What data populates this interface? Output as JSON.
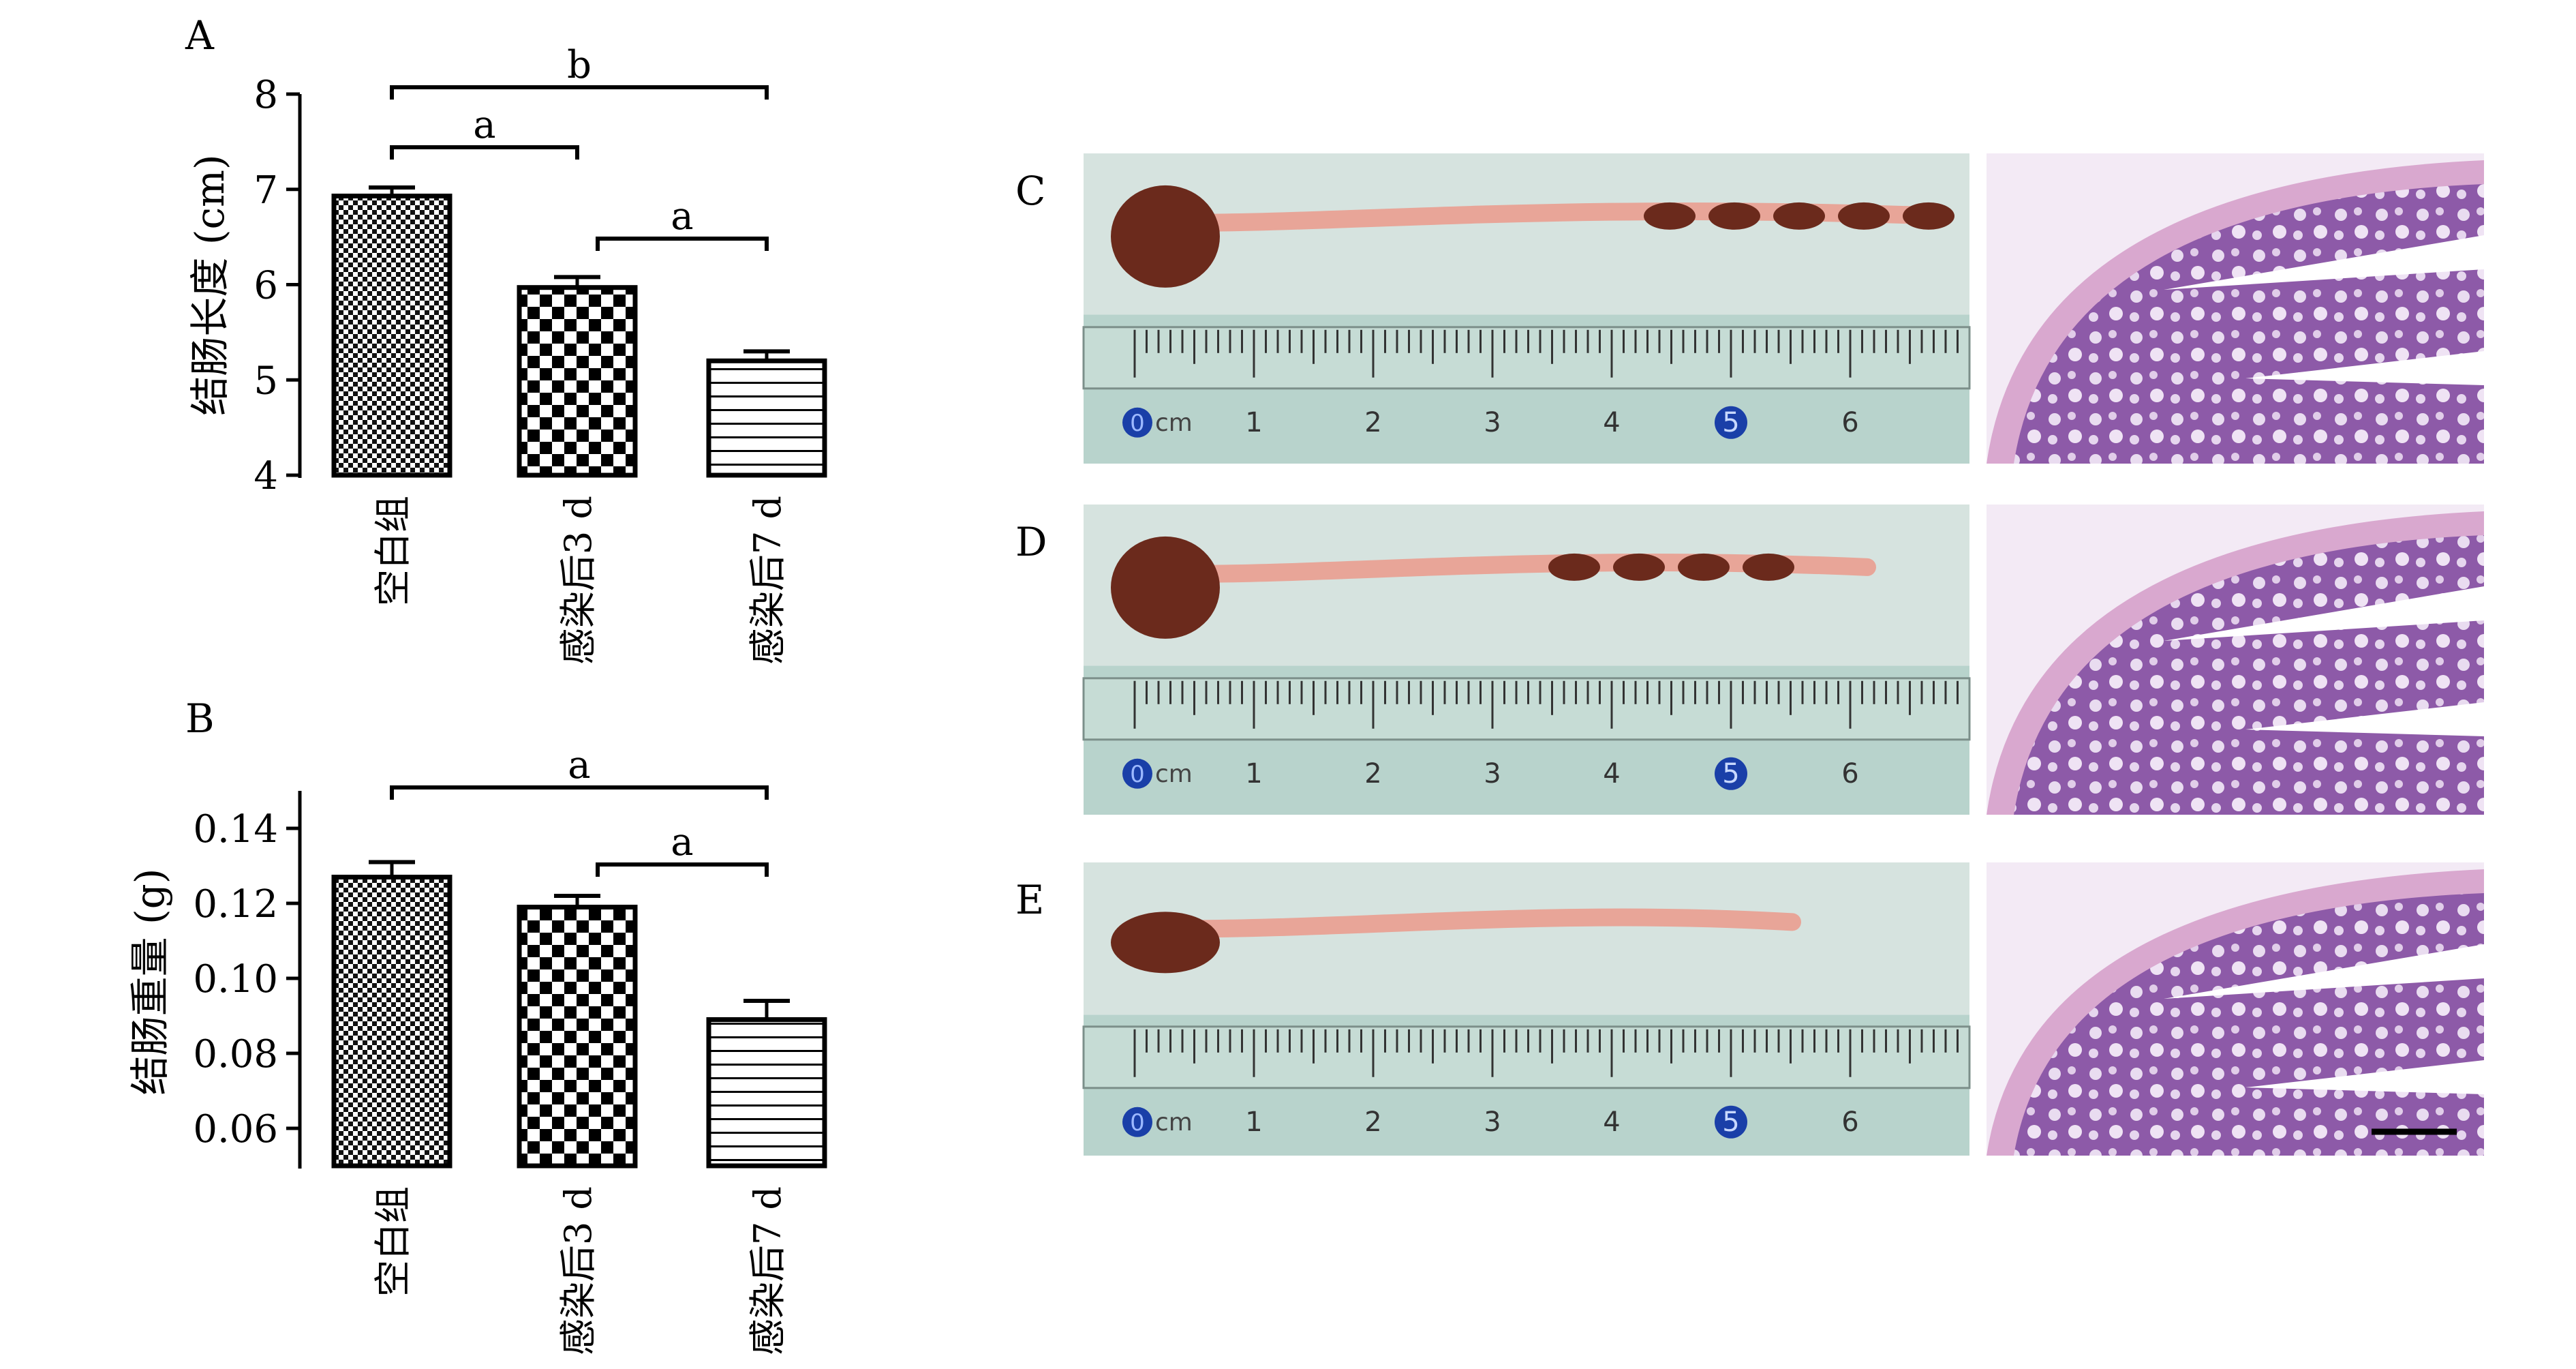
{
  "chart_data": [
    {
      "type": "bar",
      "panel_label": "A",
      "categories": [
        "空白组",
        "感染后3 d",
        "感染后7 d"
      ],
      "values": [
        6.93,
        5.97,
        5.2
      ],
      "errors": [
        0.09,
        0.11,
        0.1
      ],
      "ylabel": "结肠长度 (cm)",
      "ylim": [
        4,
        8
      ],
      "yticks": [
        "4",
        "5",
        "6",
        "7",
        "8"
      ],
      "patterns": [
        "fine-checker",
        "checker",
        "horizontal-lines"
      ],
      "significance": [
        {
          "from": 0,
          "to": 1,
          "label": "a"
        },
        {
          "from": 0,
          "to": 2,
          "label": "b"
        },
        {
          "from": 1,
          "to": 2,
          "label": "a"
        }
      ]
    },
    {
      "type": "bar",
      "panel_label": "B",
      "categories": [
        "空白组",
        "感染后3 d",
        "感染后7 d"
      ],
      "values": [
        0.127,
        0.119,
        0.089
      ],
      "errors": [
        0.004,
        0.003,
        0.005
      ],
      "ylabel": "结肠重量 (g)",
      "ylim": [
        0.05,
        0.15
      ],
      "yticks": [
        "0.06",
        "0.08",
        "0.10",
        "0.12",
        "0.14"
      ],
      "patterns": [
        "fine-checker",
        "checker",
        "horizontal-lines"
      ],
      "significance": [
        {
          "from": 0,
          "to": 2,
          "label": "a"
        },
        {
          "from": 1,
          "to": 2,
          "label": "a"
        }
      ]
    }
  ],
  "photo_panels": [
    {
      "label": "C",
      "ruler_ticks": [
        "1",
        "2",
        "3",
        "4",
        "5",
        "6"
      ],
      "ruler_unit": "cm",
      "ruler_zero": "0"
    },
    {
      "label": "D",
      "ruler_ticks": [
        "1",
        "2",
        "3",
        "4",
        "5",
        "6"
      ],
      "ruler_unit": "cm",
      "ruler_zero": "0"
    },
    {
      "label": "E",
      "ruler_ticks": [
        "1",
        "2",
        "3",
        "4",
        "5",
        "6"
      ],
      "ruler_unit": "cm",
      "ruler_zero": "0"
    }
  ],
  "colors": {
    "bar_stroke": "#000000",
    "ruler_bg": "#b8d3cc",
    "colon_dark": "#6b2a1c",
    "colon_light": "#e8a598",
    "histo_bg": "#f3eaf5",
    "histo_tissue": "#8d5aa8",
    "histo_muscle": "#d9a8cf",
    "scale_marker": "#1a3fa8"
  }
}
